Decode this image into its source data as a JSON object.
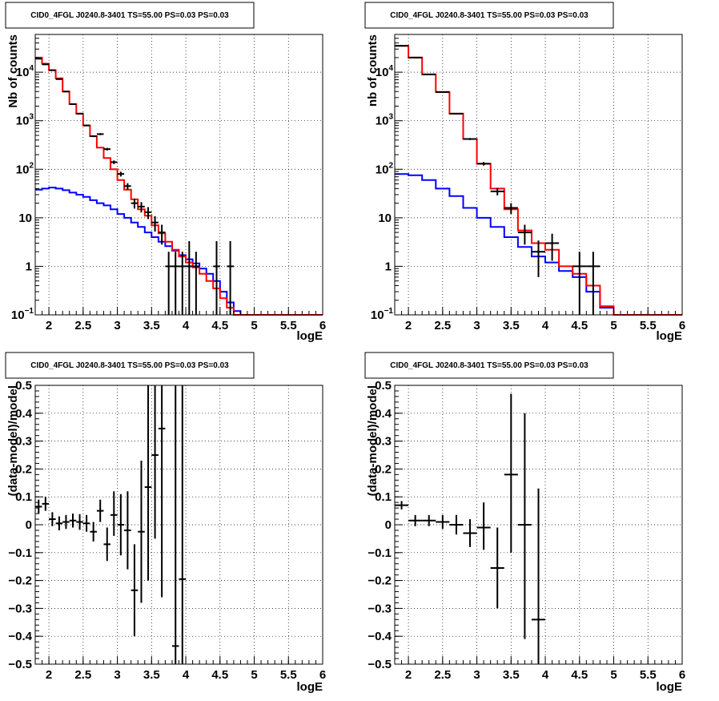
{
  "chart_data": [
    {
      "type": "line",
      "title": "CID0_4FGL J0240.8-3401 TS=55.00 PS=0.03 PS=0.03",
      "xlabel": "logE",
      "ylabel": "Nb of counts",
      "xlim": [
        1.8,
        6.0
      ],
      "ylim": [
        0.1,
        60000
      ],
      "yscale": "log",
      "grid": true,
      "xticks": [
        "2",
        "2.5",
        "3",
        "3.5",
        "4",
        "4.5",
        "5",
        "5.5",
        "6"
      ],
      "yticks": [
        {
          "value": 0.1,
          "base": "10",
          "exp": "−1"
        },
        {
          "value": 1,
          "text": "1"
        },
        {
          "value": 10,
          "text": "10"
        },
        {
          "value": 100,
          "base": "10",
          "exp": "2"
        },
        {
          "value": 1000,
          "base": "10",
          "exp": "3"
        },
        {
          "value": 10000,
          "base": "10",
          "exp": "4"
        }
      ],
      "bin_edges": [
        1.8,
        1.9,
        2.0,
        2.1,
        2.2,
        2.3,
        2.4,
        2.5,
        2.6,
        2.7,
        2.8,
        2.9,
        3.0,
        3.1,
        3.2,
        3.3,
        3.4,
        3.5,
        3.6,
        3.7,
        3.8,
        3.9,
        4.0,
        4.1,
        4.2,
        4.3,
        4.4,
        4.5,
        4.6,
        4.7,
        4.8,
        4.9,
        5.0,
        5.1,
        5.2,
        5.3,
        5.4,
        5.5,
        5.6,
        5.7,
        5.8,
        5.9,
        6.0
      ],
      "series": [
        {
          "color": "#ff0000",
          "values": [
            20000,
            15000,
            11000,
            7500,
            4000,
            2200,
            1400,
            800,
            480,
            280,
            170,
            100,
            60,
            38,
            24,
            15,
            11,
            7,
            4.8,
            3.2,
            2.2,
            1.6,
            1.2,
            0.95,
            0.7,
            0.5,
            0.35,
            0.22,
            0.14,
            0.1,
            0.1,
            0.1,
            0.1,
            0.1,
            0.1,
            0.1,
            0.1,
            0.1,
            0.1,
            0.1,
            0.1,
            0.1
          ]
        },
        {
          "color": "#0000ff",
          "values": [
            38,
            40,
            42,
            40,
            37,
            33,
            30,
            27,
            23,
            20,
            18,
            15,
            12,
            10,
            8,
            6.5,
            5,
            4,
            3.2,
            2.6,
            2.1,
            1.7,
            1.4,
            1.15,
            0.9,
            0.7,
            0.5,
            0.3,
            0.18,
            0.12,
            0.1,
            0.1,
            0.1,
            0.1,
            0.1,
            0.1,
            0.1,
            0.1,
            0.1,
            0.1,
            0.1,
            0.1
          ]
        }
      ],
      "points": [
        {
          "x": 1.85,
          "y": 19000,
          "xerr": 0.05,
          "ylo": 18700,
          "yhi": 19300
        },
        {
          "x": 1.95,
          "y": 14500,
          "xerr": 0.05,
          "ylo": 14200,
          "yhi": 14800
        },
        {
          "x": 2.05,
          "y": 11000,
          "xerr": 0.05,
          "ylo": 10700,
          "yhi": 11300
        },
        {
          "x": 2.15,
          "y": 7200,
          "xerr": 0.05,
          "ylo": 7000,
          "yhi": 7400
        },
        {
          "x": 2.25,
          "y": 4000,
          "xerr": 0.05,
          "ylo": 3900,
          "yhi": 4100
        },
        {
          "x": 2.35,
          "y": 2200,
          "xerr": 0.05,
          "ylo": 2150,
          "yhi": 2250
        },
        {
          "x": 2.45,
          "y": 1400,
          "xerr": 0.05,
          "ylo": 1360,
          "yhi": 1440
        },
        {
          "x": 2.55,
          "y": 800,
          "xerr": 0.05,
          "ylo": 770,
          "yhi": 830
        },
        {
          "x": 2.65,
          "y": 480,
          "xerr": 0.05,
          "ylo": 460,
          "yhi": 500
        },
        {
          "x": 2.75,
          "y": 530,
          "xerr": 0.05,
          "ylo": 505,
          "yhi": 555
        },
        {
          "x": 2.85,
          "y": 260,
          "xerr": 0.05,
          "ylo": 244,
          "yhi": 276
        },
        {
          "x": 2.95,
          "y": 140,
          "xerr": 0.05,
          "ylo": 128,
          "yhi": 152
        },
        {
          "x": 3.05,
          "y": 80,
          "xerr": 0.05,
          "ylo": 71,
          "yhi": 89
        },
        {
          "x": 3.15,
          "y": 45,
          "xerr": 0.05,
          "ylo": 38.3,
          "yhi": 51.7
        },
        {
          "x": 3.25,
          "y": 20,
          "xerr": 0.05,
          "ylo": 15.5,
          "yhi": 24.5
        },
        {
          "x": 3.35,
          "y": 17,
          "xerr": 0.05,
          "ylo": 12.9,
          "yhi": 21.1
        },
        {
          "x": 3.45,
          "y": 13,
          "xerr": 0.05,
          "ylo": 9.4,
          "yhi": 16.6
        },
        {
          "x": 3.55,
          "y": 8,
          "xerr": 0.05,
          "ylo": 5.2,
          "yhi": 10.8
        },
        {
          "x": 3.65,
          "y": 5,
          "xerr": 0.05,
          "ylo": 2.8,
          "yhi": 7.2
        },
        {
          "x": 3.75,
          "y": 1,
          "xerr": 0.05,
          "ylo": 0.1,
          "yhi": 2
        },
        {
          "x": 3.85,
          "y": 1,
          "xerr": 0.05,
          "ylo": 0.1,
          "yhi": 2
        },
        {
          "x": 3.95,
          "y": 1,
          "xerr": 0.05,
          "ylo": 0.1,
          "yhi": 2
        },
        {
          "x": 4.05,
          "y": 1,
          "xerr": 0.05,
          "ylo": 0.1,
          "yhi": 3.3
        },
        {
          "x": 4.15,
          "y": 1,
          "xerr": 0.05,
          "ylo": 0.1,
          "yhi": 2
        },
        {
          "x": 4.45,
          "y": 1,
          "xerr": 0.05,
          "ylo": 0.1,
          "yhi": 3.3
        },
        {
          "x": 4.65,
          "y": 1,
          "xerr": 0.05,
          "ylo": 0.1,
          "yhi": 3.3
        }
      ]
    },
    {
      "type": "line",
      "title": "CID0_4FGL J0240.8-3401 TS=55.00 PS=0.03 PS=0.03",
      "xlabel": "logE",
      "ylabel": "nb of counts",
      "xlim": [
        1.8,
        6.0
      ],
      "ylim": [
        0.1,
        60000
      ],
      "yscale": "log",
      "grid": true,
      "xticks": [
        "2",
        "2.5",
        "3",
        "3.5",
        "4",
        "4.5",
        "5",
        "5.5",
        "6"
      ],
      "yticks": [
        {
          "value": 0.1,
          "base": "10",
          "exp": "−1"
        },
        {
          "value": 1,
          "text": "1"
        },
        {
          "value": 10,
          "text": "10"
        },
        {
          "value": 100,
          "base": "10",
          "exp": "2"
        },
        {
          "value": 1000,
          "base": "10",
          "exp": "3"
        },
        {
          "value": 10000,
          "base": "10",
          "exp": "4"
        }
      ],
      "bin_edges": [
        1.8,
        2.0,
        2.2,
        2.4,
        2.6,
        2.8,
        3.0,
        3.2,
        3.4,
        3.6,
        3.8,
        4.0,
        4.2,
        4.4,
        4.6,
        4.8,
        5.0,
        5.2,
        5.4,
        5.6,
        5.8,
        6.0
      ],
      "series": [
        {
          "color": "#ff0000",
          "values": [
            35000,
            20000,
            9000,
            3900,
            1400,
            420,
            130,
            40,
            15,
            5.5,
            3,
            2.2,
            1,
            0.7,
            0.4,
            0.15,
            0.1,
            0.1,
            0.1,
            0.1,
            0.1
          ]
        },
        {
          "color": "#0000ff",
          "values": [
            80,
            75,
            60,
            40,
            28,
            16,
            10,
            6.5,
            4,
            2.5,
            1.6,
            1.2,
            0.8,
            0.6,
            0.3,
            0.14,
            0.1,
            0.1,
            0.1,
            0.1,
            0.1
          ]
        }
      ],
      "points": [
        {
          "x": 1.9,
          "y": 35000,
          "xerr": 0.1,
          "ylo": 34600,
          "yhi": 35400
        },
        {
          "x": 2.1,
          "y": 20000,
          "xerr": 0.1,
          "ylo": 19700,
          "yhi": 20300
        },
        {
          "x": 2.3,
          "y": 9000,
          "xerr": 0.1,
          "ylo": 8800,
          "yhi": 9200
        },
        {
          "x": 2.5,
          "y": 3900,
          "xerr": 0.1,
          "ylo": 3800,
          "yhi": 4000
        },
        {
          "x": 2.7,
          "y": 1400,
          "xerr": 0.1,
          "ylo": 1360,
          "yhi": 1440
        },
        {
          "x": 2.9,
          "y": 420,
          "xerr": 0.1,
          "ylo": 400,
          "yhi": 440
        },
        {
          "x": 3.1,
          "y": 130,
          "xerr": 0.1,
          "ylo": 119,
          "yhi": 141
        },
        {
          "x": 3.3,
          "y": 35,
          "xerr": 0.1,
          "ylo": 29,
          "yhi": 41
        },
        {
          "x": 3.5,
          "y": 16,
          "xerr": 0.1,
          "ylo": 12,
          "yhi": 20
        },
        {
          "x": 3.7,
          "y": 5,
          "xerr": 0.1,
          "ylo": 2.8,
          "yhi": 7.2
        },
        {
          "x": 3.9,
          "y": 2,
          "xerr": 0.1,
          "ylo": 0.6,
          "yhi": 3.4
        },
        {
          "x": 4.1,
          "y": 3,
          "xerr": 0.1,
          "ylo": 1.3,
          "yhi": 4.7
        },
        {
          "x": 4.5,
          "y": 1,
          "xerr": 0.1,
          "ylo": 0.1,
          "yhi": 2
        },
        {
          "x": 4.7,
          "y": 1,
          "xerr": 0.1,
          "ylo": 0.1,
          "yhi": 2
        }
      ]
    },
    {
      "type": "scatter",
      "title": "CID0_4FGL J0240.8-3401 TS=55.00 PS=0.03 PS=0.03",
      "xlabel": "logE",
      "ylabel": "(data-model)/model",
      "xlim": [
        1.8,
        6.0
      ],
      "ylim": [
        -0.5,
        0.5
      ],
      "yscale": "linear",
      "grid": true,
      "xticks": [
        "2",
        "2.5",
        "3",
        "3.5",
        "4",
        "4.5",
        "5",
        "5.5",
        "6"
      ],
      "yticks": [
        {
          "value": -0.5,
          "text": "−0.5"
        },
        {
          "value": -0.4,
          "text": "−0.4"
        },
        {
          "value": -0.3,
          "text": "−0.3"
        },
        {
          "value": -0.2,
          "text": "−0.2"
        },
        {
          "value": -0.1,
          "text": "−0.1"
        },
        {
          "value": 0,
          "text": "0"
        },
        {
          "value": 0.1,
          "text": "0.1"
        },
        {
          "value": 0.2,
          "text": "0.2"
        },
        {
          "value": 0.3,
          "text": "0.3"
        },
        {
          "value": 0.4,
          "text": "0.4"
        },
        {
          "value": 0.5,
          "text": "0.5"
        }
      ],
      "points": [
        {
          "x": 1.85,
          "y": 0.065,
          "xerr": 0.05,
          "ylo": 0.04,
          "yhi": 0.09
        },
        {
          "x": 1.95,
          "y": 0.075,
          "xerr": 0.05,
          "ylo": 0.05,
          "yhi": 0.1
        },
        {
          "x": 2.05,
          "y": 0.02,
          "xerr": 0.05,
          "ylo": -0.005,
          "yhi": 0.045
        },
        {
          "x": 2.15,
          "y": 0.005,
          "xerr": 0.05,
          "ylo": -0.02,
          "yhi": 0.03
        },
        {
          "x": 2.25,
          "y": 0.01,
          "xerr": 0.05,
          "ylo": -0.015,
          "yhi": 0.035
        },
        {
          "x": 2.35,
          "y": 0.015,
          "xerr": 0.05,
          "ylo": -0.01,
          "yhi": 0.04
        },
        {
          "x": 2.45,
          "y": 0.01,
          "xerr": 0.05,
          "ylo": -0.018,
          "yhi": 0.038
        },
        {
          "x": 2.55,
          "y": 0.005,
          "xerr": 0.05,
          "ylo": -0.025,
          "yhi": 0.035
        },
        {
          "x": 2.65,
          "y": -0.025,
          "xerr": 0.05,
          "ylo": -0.06,
          "yhi": 0.01
        },
        {
          "x": 2.75,
          "y": 0.05,
          "xerr": 0.05,
          "ylo": 0.01,
          "yhi": 0.09
        },
        {
          "x": 2.85,
          "y": -0.07,
          "xerr": 0.05,
          "ylo": -0.13,
          "yhi": -0.01
        },
        {
          "x": 2.95,
          "y": 0.035,
          "xerr": 0.05,
          "ylo": -0.04,
          "yhi": 0.12
        },
        {
          "x": 3.05,
          "y": 0,
          "xerr": 0.05,
          "ylo": -0.11,
          "yhi": 0.11
        },
        {
          "x": 3.15,
          "y": -0.02,
          "xerr": 0.05,
          "ylo": -0.16,
          "yhi": 0.12
        },
        {
          "x": 3.25,
          "y": -0.235,
          "xerr": 0.05,
          "ylo": -0.4,
          "yhi": -0.07
        },
        {
          "x": 3.35,
          "y": -0.025,
          "xerr": 0.05,
          "ylo": -0.28,
          "yhi": 0.23
        },
        {
          "x": 3.45,
          "y": 0.135,
          "xerr": 0.05,
          "ylo": -0.2,
          "yhi": 0.5
        },
        {
          "x": 3.55,
          "y": 0.25,
          "xerr": 0.05,
          "ylo": -0.05,
          "yhi": 0.5
        },
        {
          "x": 3.65,
          "y": 0.345,
          "xerr": 0.05,
          "ylo": -0.26,
          "yhi": 0.5
        },
        {
          "x": 3.85,
          "y": -0.435,
          "xerr": 0.05,
          "ylo": -0.5,
          "yhi": 0.5
        },
        {
          "x": 3.95,
          "y": -0.195,
          "xerr": 0.05,
          "ylo": -0.5,
          "yhi": 0.5
        }
      ]
    },
    {
      "type": "scatter",
      "title": "CID0_4FGL J0240.8-3401 TS=55.00 PS=0.03 PS=0.03",
      "xlabel": "logE",
      "ylabel": "(data-model)/model",
      "xlim": [
        1.8,
        6.0
      ],
      "ylim": [
        -0.5,
        0.5
      ],
      "yscale": "linear",
      "grid": true,
      "xticks": [
        "2",
        "2.5",
        "3",
        "3.5",
        "4",
        "4.5",
        "5",
        "5.5",
        "6"
      ],
      "yticks": [
        {
          "value": -0.5,
          "text": "−0.5"
        },
        {
          "value": -0.4,
          "text": "−0.4"
        },
        {
          "value": -0.3,
          "text": "−0.3"
        },
        {
          "value": -0.2,
          "text": "−0.2"
        },
        {
          "value": -0.1,
          "text": "−0.1"
        },
        {
          "value": 0,
          "text": "0"
        },
        {
          "value": 0.1,
          "text": "0.1"
        },
        {
          "value": 0.2,
          "text": "0.2"
        },
        {
          "value": 0.3,
          "text": "0.3"
        },
        {
          "value": 0.4,
          "text": "0.4"
        },
        {
          "value": 0.5,
          "text": "0.5"
        }
      ],
      "points": [
        {
          "x": 1.9,
          "y": 0.07,
          "xerr": 0.1,
          "ylo": 0.055,
          "yhi": 0.085
        },
        {
          "x": 2.1,
          "y": 0.015,
          "xerr": 0.1,
          "ylo": -0.005,
          "yhi": 0.035
        },
        {
          "x": 2.3,
          "y": 0.015,
          "xerr": 0.1,
          "ylo": -0.005,
          "yhi": 0.035
        },
        {
          "x": 2.5,
          "y": 0.01,
          "xerr": 0.1,
          "ylo": -0.015,
          "yhi": 0.035
        },
        {
          "x": 2.7,
          "y": 0,
          "xerr": 0.1,
          "ylo": -0.035,
          "yhi": 0.035
        },
        {
          "x": 2.9,
          "y": -0.03,
          "xerr": 0.1,
          "ylo": -0.08,
          "yhi": 0.02
        },
        {
          "x": 3.1,
          "y": -0.01,
          "xerr": 0.1,
          "ylo": -0.09,
          "yhi": 0.08
        },
        {
          "x": 3.3,
          "y": -0.155,
          "xerr": 0.1,
          "ylo": -0.3,
          "yhi": -0.01
        },
        {
          "x": 3.5,
          "y": 0.18,
          "xerr": 0.1,
          "ylo": -0.1,
          "yhi": 0.47
        },
        {
          "x": 3.7,
          "y": 0,
          "xerr": 0.1,
          "ylo": -0.41,
          "yhi": 0.4
        },
        {
          "x": 3.9,
          "y": -0.34,
          "xerr": 0.1,
          "ylo": -0.5,
          "yhi": 0.13
        }
      ]
    }
  ]
}
